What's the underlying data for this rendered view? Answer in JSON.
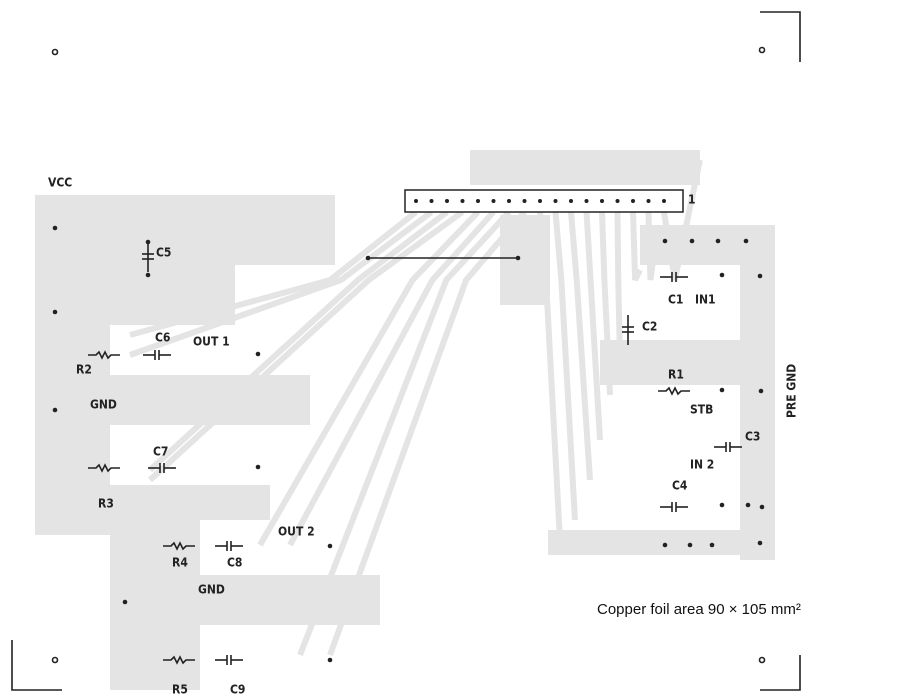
{
  "labels": [
    "VCC",
    "C5",
    "C6",
    "OUT 1",
    "R2",
    "GND",
    "C7",
    "R3",
    "R4",
    "C8",
    "OUT 2",
    "GND",
    "R5",
    "C9",
    "1",
    "C1",
    "IN1",
    "C2",
    "R1",
    "STB",
    "C3",
    "IN 2",
    "C4",
    "PRE GND"
  ],
  "caption": "Copper foil area 90 × 105 mm²"
}
